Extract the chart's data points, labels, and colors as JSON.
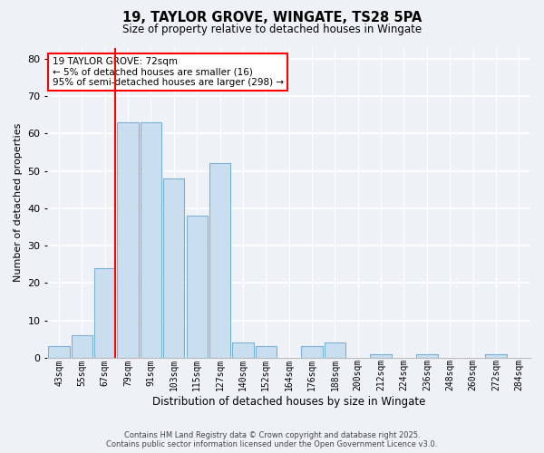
{
  "title": "19, TAYLOR GROVE, WINGATE, TS28 5PA",
  "subtitle": "Size of property relative to detached houses in Wingate",
  "xlabel": "Distribution of detached houses by size in Wingate",
  "ylabel": "Number of detached properties",
  "bar_labels": [
    "43sqm",
    "55sqm",
    "67sqm",
    "79sqm",
    "91sqm",
    "103sqm",
    "115sqm",
    "127sqm",
    "140sqm",
    "152sqm",
    "164sqm",
    "176sqm",
    "188sqm",
    "200sqm",
    "212sqm",
    "224sqm",
    "236sqm",
    "248sqm",
    "260sqm",
    "272sqm",
    "284sqm"
  ],
  "bar_values": [
    3,
    6,
    24,
    63,
    63,
    48,
    38,
    52,
    4,
    3,
    0,
    3,
    4,
    0,
    1,
    0,
    1,
    0,
    0,
    1,
    0
  ],
  "bar_color": "#c9dff0",
  "bar_edge_color": "#7ab0d4",
  "ylim": [
    0,
    83
  ],
  "yticks": [
    0,
    10,
    20,
    30,
    40,
    50,
    60,
    70,
    80
  ],
  "red_line_index": 2,
  "annotation_title": "19 TAYLOR GROVE: 72sqm",
  "annotation_line1": "← 5% of detached houses are smaller (16)",
  "annotation_line2": "95% of semi-detached houses are larger (298) →",
  "footer_line1": "Contains HM Land Registry data © Crown copyright and database right 2025.",
  "footer_line2": "Contains public sector information licensed under the Open Government Licence v3.0.",
  "background_color": "#eef2f7"
}
